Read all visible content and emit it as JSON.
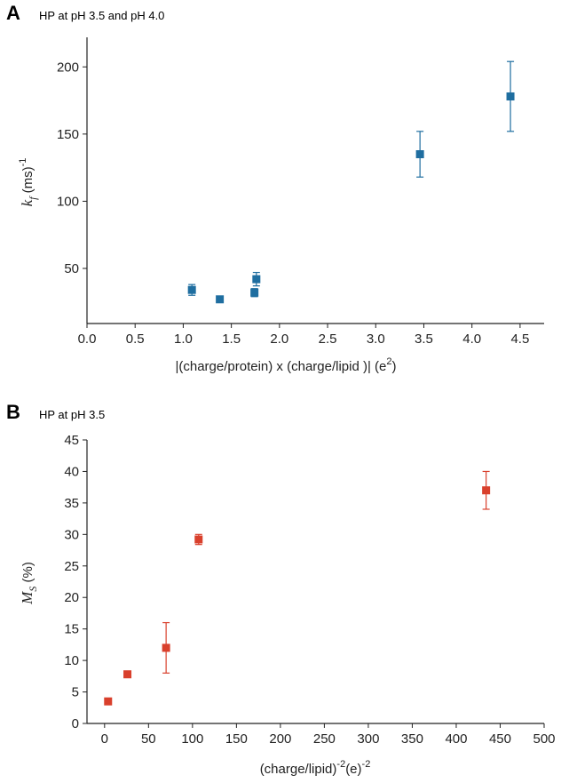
{
  "chart_data": [
    {
      "panel": "A",
      "type": "scatter",
      "title": "HP at pH 3.5 and pH 4.0",
      "xlabel": "|(charge/protein) x (charge/lipid )|  (e²)",
      "xlabel_parts": [
        "|(charge/protein) x (charge/lipid )|  (e",
        "2",
        ")"
      ],
      "ylabel": "k_f (ms)^-1",
      "ylabel_parts": {
        "main": "k",
        "sub": "f",
        "unit": " (ms)",
        "sup": "-1"
      },
      "xlim": [
        0,
        4.75
      ],
      "ylim": [
        9,
        222
      ],
      "xticks": [
        0.0,
        0.5,
        1.0,
        1.5,
        2.0,
        2.5,
        3.0,
        3.5,
        4.0,
        4.5
      ],
      "xtick_labels": [
        "0.0",
        "0.5",
        "1.0",
        "1.5",
        "2.0",
        "2.5",
        "3.0",
        "3.5",
        "4.0",
        "4.5"
      ],
      "yticks": [
        50,
        100,
        150,
        200
      ],
      "ytick_labels": [
        "50",
        "100",
        "150",
        "200"
      ],
      "color": "#1f6ea0",
      "points": [
        {
          "x": 1.09,
          "y": 34,
          "err": 4
        },
        {
          "x": 1.38,
          "y": 27,
          "err": 0
        },
        {
          "x": 1.74,
          "y": 32,
          "err": 3
        },
        {
          "x": 1.76,
          "y": 42,
          "err": 5
        },
        {
          "x": 3.46,
          "y": 135,
          "err": 17
        },
        {
          "x": 4.4,
          "y": 178,
          "err": 26
        }
      ],
      "grid": false
    },
    {
      "panel": "B",
      "type": "scatter",
      "title": "HP at pH 3.5",
      "xlabel": "(charge/lipid)^-2 (e)^-2",
      "xlabel_parts": [
        "(charge/lipid)",
        "-2",
        "(e)",
        "-2"
      ],
      "ylabel": "M_S (%)",
      "ylabel_parts": {
        "main": "M",
        "sub": "S",
        "unit": " (%)"
      },
      "xlim": [
        -20,
        500
      ],
      "ylim": [
        0,
        45
      ],
      "xticks": [
        0,
        50,
        100,
        150,
        200,
        250,
        300,
        350,
        400,
        450,
        500
      ],
      "xtick_labels": [
        "0",
        "50",
        "100",
        "150",
        "200",
        "250",
        "300",
        "350",
        "400",
        "450",
        "500"
      ],
      "yticks": [
        0,
        5,
        10,
        15,
        20,
        25,
        30,
        35,
        40,
        45
      ],
      "ytick_labels": [
        "0",
        "5",
        "10",
        "15",
        "20",
        "25",
        "30",
        "35",
        "40",
        "45"
      ],
      "color": "#d9402c",
      "points": [
        {
          "x": 4,
          "y": 3.5,
          "err": 0
        },
        {
          "x": 26,
          "y": 7.8,
          "err": 0
        },
        {
          "x": 70,
          "y": 12,
          "err": 4
        },
        {
          "x": 107,
          "y": 29.2,
          "err": 0.8
        },
        {
          "x": 434,
          "y": 37,
          "err": 3
        }
      ],
      "grid": false
    }
  ]
}
